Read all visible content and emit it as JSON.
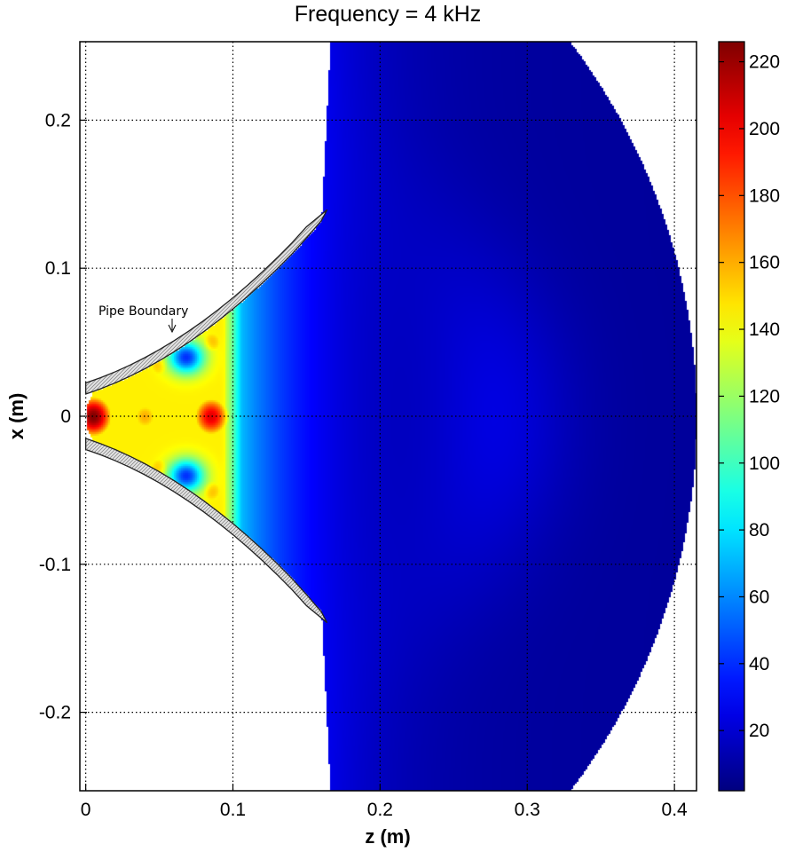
{
  "chart_data": {
    "type": "heatmap",
    "title": "Frequency = 4 kHz",
    "xlabel": "z (m)",
    "ylabel": "x (m)",
    "xlim": [
      -0.004,
      0.415
    ],
    "ylim": [
      -0.253,
      0.253
    ],
    "x_ticks": [
      0,
      0.1,
      0.2,
      0.3,
      0.4
    ],
    "x_tick_labels": [
      "0",
      "0.1",
      "0.2",
      "0.3",
      "0.4"
    ],
    "y_ticks": [
      0.2,
      0.1,
      0,
      -0.1,
      -0.2
    ],
    "y_tick_labels": [
      "0.2",
      "0.1",
      "0",
      "-0.1",
      "-0.2"
    ],
    "grid": true,
    "colormap": "jet",
    "colorbar": {
      "min": 2,
      "max": 226,
      "ticks": [
        220,
        200,
        180,
        160,
        140,
        120,
        100,
        80,
        60,
        40,
        20
      ],
      "tick_labels": [
        "220",
        "200",
        "180",
        "160",
        "140",
        "120",
        "100",
        "80",
        "60",
        "40",
        "20"
      ]
    },
    "annotation": "Pipe Boundary",
    "pipe": {
      "inner_profile_z": [
        0,
        0.01,
        0.02,
        0.03,
        0.04,
        0.05,
        0.06,
        0.07,
        0.08,
        0.09,
        0.1,
        0.11,
        0.12,
        0.13,
        0.14,
        0.15,
        0.16
      ],
      "inner_profile_x": [
        0.015,
        0.0185,
        0.0225,
        0.027,
        0.032,
        0.0375,
        0.0435,
        0.05,
        0.057,
        0.0645,
        0.0725,
        0.081,
        0.09,
        0.0995,
        0.1095,
        0.1205,
        0.132
      ],
      "wall_thickness": 0.0075
    },
    "domain_outer_radius": 0.415,
    "field_peaks": [
      {
        "z": 0.005,
        "x": 0.0,
        "value": 226
      },
      {
        "z": 0.085,
        "x": 0.0,
        "value": 205
      },
      {
        "z": 0.04,
        "x": 0.0,
        "value": 160
      },
      {
        "z": 0.05,
        "x": 0.035,
        "value": 160
      },
      {
        "z": 0.05,
        "x": -0.035,
        "value": 160
      },
      {
        "z": 0.085,
        "x": 0.05,
        "value": 160
      },
      {
        "z": 0.085,
        "x": -0.05,
        "value": 160
      }
    ],
    "field_minima": [
      {
        "z": 0.068,
        "x": 0.04,
        "value": 40
      },
      {
        "z": 0.068,
        "x": -0.04,
        "value": 40
      }
    ]
  },
  "colors": {
    "jet_low": "#00008f",
    "jet_high": "#800000",
    "pipe_wall": "#e0e0e0"
  }
}
